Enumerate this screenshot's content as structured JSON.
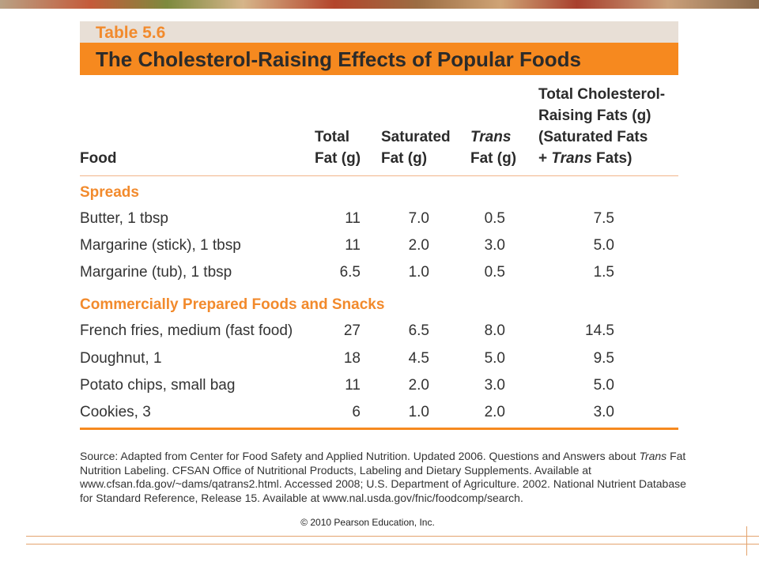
{
  "table": {
    "label": "Table 5.6",
    "title": "The Cholesterol-Raising Effects of Popular Foods",
    "headers": {
      "food": "Food",
      "total_fat": [
        "Total",
        "Fat (g)"
      ],
      "saturated_fat": [
        "Saturated",
        "Fat (g)"
      ],
      "trans_fat": [
        "Trans",
        "Fat (g)"
      ],
      "cholesterol_raising": [
        "Total Cholesterol-",
        "Raising Fats (g)",
        "(Saturated Fats",
        "+ ",
        "Trans",
        " Fats)"
      ]
    },
    "sections": [
      {
        "name": "Spreads",
        "rows": [
          {
            "food": "Butter, 1 tbsp",
            "total_fat": "11",
            "saturated_fat": "7.0",
            "trans_fat": "0.5",
            "cholesterol_raising": "7.5"
          },
          {
            "food": "Margarine (stick), 1 tbsp",
            "total_fat": "11",
            "saturated_fat": "2.0",
            "trans_fat": "3.0",
            "cholesterol_raising": "5.0"
          },
          {
            "food": "Margarine (tub), 1 tbsp",
            "total_fat": "6.5",
            "saturated_fat": "1.0",
            "trans_fat": "0.5",
            "cholesterol_raising": "1.5"
          }
        ]
      },
      {
        "name": "Commercially Prepared Foods and Snacks",
        "rows": [
          {
            "food": "French fries, medium (fast food)",
            "total_fat": "27",
            "saturated_fat": "6.5",
            "trans_fat": "8.0",
            "cholesterol_raising": "14.5"
          },
          {
            "food": "Doughnut, 1",
            "total_fat": "18",
            "saturated_fat": "4.5",
            "trans_fat": "5.0",
            "cholesterol_raising": "9.5"
          },
          {
            "food": "Potato chips, small bag",
            "total_fat": "11",
            "saturated_fat": "2.0",
            "trans_fat": "3.0",
            "cholesterol_raising": "5.0"
          },
          {
            "food": "Cookies, 3",
            "total_fat": "6",
            "saturated_fat": "1.0",
            "trans_fat": "2.0",
            "cholesterol_raising": "3.0"
          }
        ]
      }
    ]
  },
  "source": {
    "part1": "Source: Adapted from Center for Food Safety and Applied Nutrition. Updated 2006. Questions and Answers about ",
    "italic": "Trans",
    "part2": " Fat Nutrition Labeling. CFSAN Office of Nutritional Products, Labeling and Dietary Supplements. Available at www.cfsan.fda.gov/~dams/qatrans2.html. Accessed 2008; U.S. Department of Agriculture. 2002. National Nutrient Database for Standard Reference, Release 15. Available at www.nal.usda.gov/fnic/foodcomp/search."
  },
  "copyright": "© 2010 Pearson Education, Inc.",
  "colors": {
    "accent_orange": "#f6891f",
    "label_band": "#e8dfd6",
    "section_text": "#f28a2c"
  }
}
